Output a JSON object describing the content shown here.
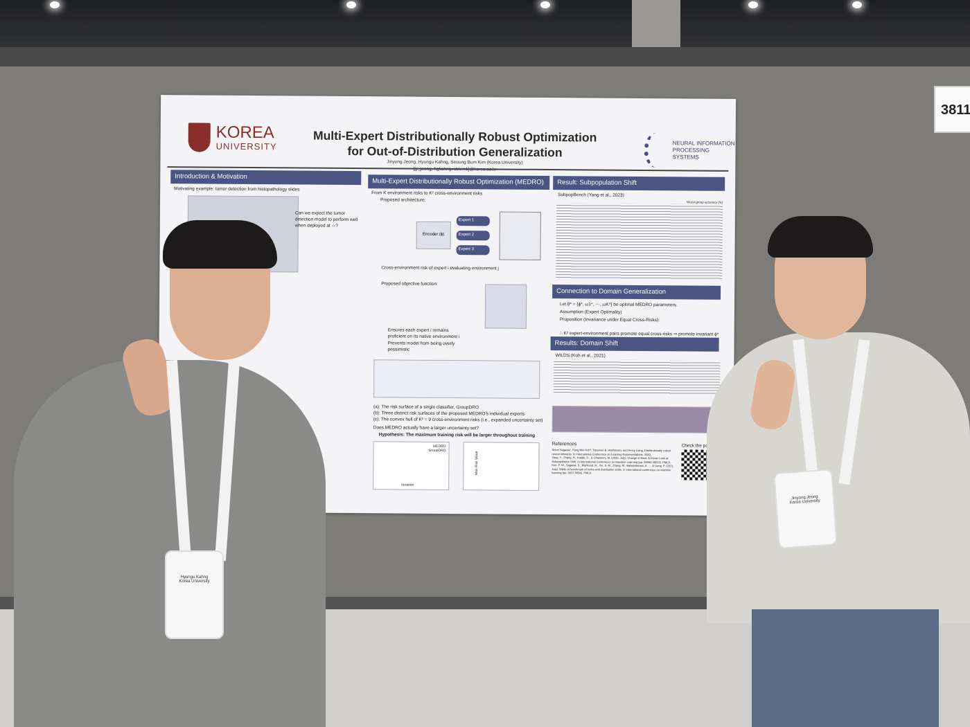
{
  "booth_sign": "3811",
  "poster": {
    "university_logo": {
      "line1": "KOREA",
      "line2": "UNIVERSITY"
    },
    "title_line1": "Multi-Expert Distributionally Robust Optimization",
    "title_line2": "for Out-of-Distribution Generalization",
    "authors": "Jinyong Jeong, Hyungu Kahng, Seoung Bum Kim (Korea University)",
    "emails": "{jy_jeong, hgkahng, sbkim1}@korea.ac.kr",
    "conference_logo": {
      "line1": "NEURAL INFORMATION",
      "line2": "PROCESSING SYSTEMS"
    },
    "sections": {
      "intro": {
        "header": "Introduction & Motivation",
        "text": "Motivating example: tumor detection from histopathology slides",
        "question": "Can we expect the tumor detection model to perform well when deployed at ☆?"
      },
      "medro": {
        "header": "Multi-Expert Distributionally Robust Optimization (MEDRO)",
        "subtitle": "From K environment risks to K² cross-environment risks",
        "arch": "Proposed architecture:",
        "expert1": "Expert 1",
        "expert2": "Expert 2",
        "expert3": "Expert 3",
        "encoder": "Encoder (ϕ)",
        "cross_risk": "Cross-environment risk of expert i evaluating environment j",
        "objective": "Proposed objective function:",
        "bullet1": "Ensures each expert i remains proficient on its native environment i",
        "bullet2": "Prevents model from being overly pessimistic",
        "caption_a": "(a): The risk surface of a single classifier, GroupDRO",
        "caption_b": "(b): Three distinct risk surfaces of the proposed MEDRO's individual experts",
        "caption_c": "(c): The convex hull of K² = 9 cross-environment risks (i.e., expanded uncertainty set)",
        "question": "Does MEDRO actually have a larger uncertainty set?",
        "hypothesis": "Hypothesis: The maximum training risk will be larger throughout training",
        "legend1": "MEDRO",
        "legend2": "GroupDRO",
        "xlabel": "Iteration",
        "ylabel": "Max Risk Value"
      },
      "subpop": {
        "header": "Result: Subpopulation Shift",
        "benchmark": "SubpopBench (Yang et al., 2023)",
        "table_note": "Worst-group accuracy (%)"
      },
      "dg": {
        "header": "Connection to Domain Generalization",
        "b1": "Let θ* = {ϕ*, ω1*, ⋯, ωK*} be optimal MEDRO parameters.",
        "b2": "Assumption (Expert Optimality)",
        "b3": "Proposition (Invariance under Equal Cross-Risks):",
        "b4": "∴ K² expert-environment pairs promote equal cross-risks ⇒ promote invariant ϕ*"
      },
      "domain_shift": {
        "header": "Results: Domain Shift",
        "benchmark": "WILDS (Koh et al., 2021)"
      },
      "references": {
        "header": "References",
        "r1": "Shiori Sagawa*, Pang Wei Koh*, Tatsunori B. Hashimoto, and Percy Liang. Distributionally robust neural networks. In International Conference on Learning Representations, 2020.",
        "r2": "Yang, Y., Zhang, H., Katabi, D., & Ghassemi, M. (2023, July). Change is Hard: A Closer Look at Subpopulation Shift. In International Conference on Machine Learning (pp. 39584-39622). PMLR.",
        "r3": "Koh, P. W., Sagawa, S., Marklund, H., Xie, S. M., Zhang, M., Balsubramani, A., ... & Liang, P. (2021, July). Wilds: A benchmark of in-the-wild distribution shifts. In International conference on machine learning (pp. 5637-5664). PMLR.",
        "qr_label": "Check the paper"
      }
    }
  },
  "badges": {
    "left": {
      "name": "Hyungu Kahng",
      "affiliation": "Korea University"
    },
    "right": {
      "name": "Jinyong Jeong",
      "affiliation": "Korea University"
    }
  },
  "colors": {
    "header": "#4a5583",
    "korea_red": "#8b2e2a",
    "wall": "#7e7c79"
  }
}
